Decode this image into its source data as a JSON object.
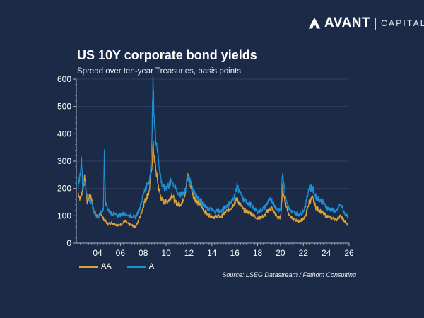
{
  "brand": {
    "name": "AVANT",
    "suffix": "CAPITAL",
    "logo_icon": "avant-mountain-logo-icon"
  },
  "colors": {
    "background": "#1b2a47",
    "aa_series": "#d9a23a",
    "a_series": "#1d8fd3",
    "gridline": "#2e3e5c",
    "axis": "#aab4c4"
  },
  "chart_data": {
    "type": "line",
    "title": "US 10Y corporate bond yields",
    "subtitle": "Spread over ten-year Treasuries, basis points",
    "xlabel": "",
    "ylabel": "",
    "xlim": [
      2002.3,
      2026.0
    ],
    "ylim": [
      0,
      600
    ],
    "yticks": [
      0,
      100,
      200,
      300,
      400,
      500,
      600
    ],
    "xticks": [
      {
        "value": 2004,
        "label": "04"
      },
      {
        "value": 2006,
        "label": "06"
      },
      {
        "value": 2008,
        "label": "08"
      },
      {
        "value": 2010,
        "label": "10"
      },
      {
        "value": 2012,
        "label": "12"
      },
      {
        "value": 2014,
        "label": "14"
      },
      {
        "value": 2016,
        "label": "16"
      },
      {
        "value": 2018,
        "label": "18"
      },
      {
        "value": 2020,
        "label": "20"
      },
      {
        "value": 2022,
        "label": "22"
      },
      {
        "value": 2024,
        "label": "24"
      },
      {
        "value": 2026,
        "label": "26"
      }
    ],
    "grid": true,
    "legend_position": "bottom-left",
    "source": "Source: LSEG Datastream / Fathom Consulting",
    "series": [
      {
        "name": "AA",
        "x": [
          2002.3,
          2002.5,
          2002.7,
          2002.9,
          2003.1,
          2003.3,
          2003.5,
          2003.7,
          2003.9,
          2004.1,
          2004.3,
          2004.5,
          2004.7,
          2004.9,
          2005.2,
          2005.5,
          2005.8,
          2006.1,
          2006.4,
          2006.7,
          2007.0,
          2007.3,
          2007.5,
          2007.7,
          2007.9,
          2008.1,
          2008.3,
          2008.5,
          2008.7,
          2008.85,
          2009.0,
          2009.2,
          2009.4,
          2009.6,
          2009.8,
          2010.0,
          2010.3,
          2010.5,
          2010.8,
          2011.1,
          2011.4,
          2011.7,
          2011.9,
          2012.1,
          2012.4,
          2012.7,
          2013.0,
          2013.3,
          2013.6,
          2013.9,
          2014.2,
          2014.5,
          2014.8,
          2015.1,
          2015.4,
          2015.7,
          2016.0,
          2016.2,
          2016.5,
          2016.8,
          2017.1,
          2017.4,
          2017.7,
          2018.0,
          2018.3,
          2018.6,
          2018.9,
          2019.2,
          2019.5,
          2019.8,
          2020.0,
          2020.2,
          2020.4,
          2020.7,
          2021.0,
          2021.3,
          2021.6,
          2021.9,
          2022.2,
          2022.5,
          2022.8,
          2023.1,
          2023.4,
          2023.7,
          2024.0,
          2024.3,
          2024.6,
          2024.9,
          2025.2,
          2025.4,
          2025.6,
          2025.9
        ],
        "values": [
          185,
          160,
          200,
          240,
          150,
          175,
          160,
          120,
          100,
          95,
          110,
          90,
          80,
          70,
          75,
          70,
          65,
          70,
          80,
          70,
          65,
          60,
          75,
          95,
          120,
          150,
          170,
          185,
          250,
          360,
          300,
          240,
          190,
          160,
          150,
          150,
          160,
          180,
          150,
          140,
          150,
          190,
          250,
          220,
          170,
          150,
          140,
          120,
          105,
          100,
          95,
          100,
          95,
          110,
          120,
          130,
          150,
          160,
          140,
          120,
          115,
          110,
          100,
          90,
          95,
          100,
          120,
          130,
          110,
          90,
          95,
          200,
          150,
          110,
          90,
          85,
          80,
          85,
          100,
          150,
          165,
          130,
          120,
          110,
          100,
          95,
          90,
          85,
          100,
          90,
          80,
          65
        ]
      },
      {
        "name": "A",
        "x": [
          2002.3,
          2002.5,
          2002.6,
          2002.7,
          2002.9,
          2003.1,
          2003.3,
          2003.5,
          2003.7,
          2003.9,
          2004.1,
          2004.3,
          2004.5,
          2004.6,
          2004.7,
          2004.9,
          2005.2,
          2005.5,
          2005.8,
          2006.1,
          2006.4,
          2006.7,
          2007.0,
          2007.3,
          2007.5,
          2007.7,
          2007.9,
          2008.1,
          2008.3,
          2008.5,
          2008.7,
          2008.85,
          2009.0,
          2009.2,
          2009.4,
          2009.6,
          2009.8,
          2010.0,
          2010.3,
          2010.5,
          2010.8,
          2011.1,
          2011.4,
          2011.7,
          2011.9,
          2012.1,
          2012.4,
          2012.7,
          2013.0,
          2013.3,
          2013.6,
          2013.9,
          2014.2,
          2014.5,
          2014.8,
          2015.1,
          2015.4,
          2015.7,
          2016.0,
          2016.2,
          2016.5,
          2016.8,
          2017.1,
          2017.4,
          2017.7,
          2018.0,
          2018.3,
          2018.6,
          2018.9,
          2019.2,
          2019.5,
          2019.8,
          2020.0,
          2020.2,
          2020.4,
          2020.7,
          2021.0,
          2021.3,
          2021.6,
          2021.9,
          2022.2,
          2022.5,
          2022.8,
          2023.1,
          2023.4,
          2023.7,
          2024.0,
          2024.3,
          2024.6,
          2024.9,
          2025.2,
          2025.4,
          2025.6,
          2025.9
        ],
        "values": [
          210,
          250,
          315,
          200,
          230,
          170,
          160,
          140,
          110,
          100,
          95,
          115,
          120,
          320,
          150,
          120,
          110,
          105,
          100,
          105,
          110,
          100,
          100,
          95,
          110,
          130,
          160,
          195,
          210,
          220,
          300,
          580,
          420,
          360,
          280,
          220,
          200,
          205,
          215,
          230,
          200,
          180,
          175,
          200,
          245,
          230,
          190,
          170,
          160,
          140,
          125,
          125,
          115,
          120,
          115,
          130,
          140,
          150,
          175,
          210,
          180,
          155,
          150,
          140,
          125,
          115,
          120,
          130,
          150,
          160,
          135,
          120,
          120,
          265,
          180,
          130,
          115,
          110,
          105,
          110,
          140,
          205,
          200,
          170,
          160,
          150,
          130,
          125,
          120,
          115,
          140,
          130,
          110,
          95
        ]
      }
    ]
  }
}
